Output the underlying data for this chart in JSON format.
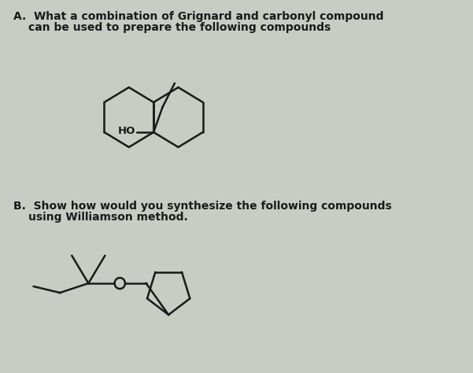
{
  "background_color": "#c8ccc4",
  "text_color": "#1a1a1a",
  "line_color": "#1a1a1a",
  "line_width": 1.8,
  "title_a_line1": "A.  What a combination of Grignard and carbonyl compound",
  "title_a_line2": "can be used to prepare the following compounds",
  "title_b_line1": "B.  Show how would you synthesize the following compounds",
  "title_b_line2": "using Williamson method.",
  "fontsize_title": 10.0
}
